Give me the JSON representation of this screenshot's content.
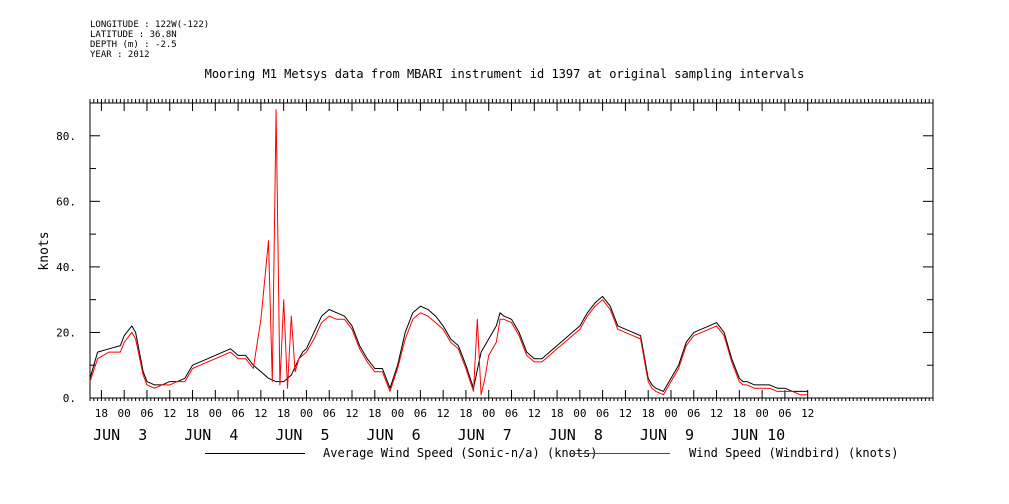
{
  "meta": {
    "longitude": "LONGITUDE : 122W(-122)",
    "latitude": "LATITUDE : 36.8N",
    "depth": "DEPTH (m) : -2.5",
    "year": "YEAR : 2012"
  },
  "chart_data": {
    "type": "line",
    "title": "Mooring M1 Metsys data from MBARI instrument id 1397 at original sampling intervals",
    "ylabel": "knots",
    "xlabel": "",
    "ylim": [
      0,
      90
    ],
    "yticks": [
      0,
      20,
      40,
      60,
      80
    ],
    "ytick_labels": [
      "0.",
      "20.",
      "40.",
      "60.",
      "80."
    ],
    "xlim_hours": [
      -9,
      213
    ],
    "hour_ticks": [
      "18",
      "00",
      "06",
      "12",
      "18",
      "00",
      "06",
      "12",
      "18",
      "00",
      "06",
      "12",
      "18",
      "00",
      "06",
      "12",
      "18",
      "00",
      "06",
      "12",
      "18",
      "00",
      "06",
      "12",
      "18",
      "00",
      "06",
      "12",
      "18",
      "00",
      "06",
      "12"
    ],
    "day_labels": [
      {
        "text": "JUN  3",
        "hour": 0
      },
      {
        "text": "JUN  4",
        "hour": 24
      },
      {
        "text": "JUN  5",
        "hour": 48
      },
      {
        "text": "JUN  6",
        "hour": 72
      },
      {
        "text": "JUN  7",
        "hour": 96
      },
      {
        "text": "JUN  8",
        "hour": 120
      },
      {
        "text": "JUN  9",
        "hour": 144
      },
      {
        "text": "JUN 10",
        "hour": 168
      }
    ],
    "x_units": "hours since JUN 3 00:00",
    "grid": false,
    "legend_position": "bottom",
    "series": [
      {
        "name": "Average Wind Speed (Sonic-n/a) (knots)",
        "color": "#000000",
        "x": [
          -9,
          -7,
          -4,
          -1,
          0,
          2,
          3,
          5,
          6,
          8,
          10,
          12,
          14,
          16,
          18,
          20,
          22,
          24,
          26,
          28,
          30,
          32,
          34,
          36,
          38,
          40,
          42,
          44,
          46,
          47,
          48,
          50,
          52,
          54,
          56,
          58,
          60,
          62,
          64,
          66,
          68,
          70,
          72,
          74,
          76,
          78,
          80,
          82,
          84,
          86,
          88,
          90,
          92,
          94,
          96,
          98,
          99,
          100,
          102,
          104,
          106,
          108,
          110,
          112,
          114,
          116,
          118,
          120,
          122,
          124,
          126,
          128,
          130,
          132,
          134,
          136,
          138,
          139,
          140,
          142,
          144,
          146,
          148,
          150,
          152,
          154,
          156,
          158,
          160,
          162,
          163,
          164,
          166,
          168,
          170,
          172,
          174,
          176,
          178,
          180
        ],
        "y": [
          6,
          14,
          15,
          16,
          19,
          22,
          20,
          8,
          5,
          4,
          4,
          5,
          5,
          6,
          10,
          11,
          12,
          13,
          14,
          15,
          13,
          13,
          10,
          8,
          6,
          5,
          5,
          7,
          12,
          14,
          15,
          20,
          25,
          27,
          26,
          25,
          22,
          16,
          12,
          9,
          9,
          3,
          10,
          20,
          26,
          28,
          27,
          25,
          22,
          18,
          16,
          10,
          3,
          14,
          18,
          22,
          26,
          25,
          24,
          20,
          14,
          12,
          12,
          14,
          16,
          18,
          20,
          22,
          26,
          29,
          31,
          28,
          22,
          21,
          20,
          19,
          6,
          4,
          3,
          2,
          6,
          10,
          17,
          20,
          21,
          22,
          23,
          20,
          12,
          6,
          5,
          5,
          4,
          4,
          4,
          3,
          3,
          2,
          2,
          2
        ]
      },
      {
        "name": "Wind Speed (Windbird) (knots)",
        "color": "#ff0000",
        "x": [
          -9,
          -7,
          -4,
          -1,
          0,
          2,
          3,
          5,
          6,
          8,
          10,
          12,
          14,
          16,
          18,
          20,
          22,
          24,
          26,
          28,
          30,
          32,
          34,
          36,
          38,
          39,
          40,
          41,
          42,
          43,
          44,
          45,
          46,
          47,
          48,
          50,
          52,
          54,
          56,
          58,
          60,
          62,
          64,
          66,
          68,
          70,
          72,
          74,
          76,
          78,
          80,
          82,
          84,
          86,
          88,
          90,
          92,
          93,
          94,
          95,
          96,
          98,
          99,
          100,
          102,
          104,
          106,
          108,
          110,
          112,
          114,
          116,
          118,
          120,
          122,
          124,
          126,
          128,
          130,
          132,
          134,
          136,
          138,
          139,
          140,
          142,
          144,
          146,
          148,
          150,
          152,
          154,
          156,
          158,
          160,
          162,
          163,
          164,
          166,
          168,
          170,
          172,
          174,
          176,
          178,
          180
        ],
        "y": [
          5,
          12,
          14,
          14,
          17,
          20,
          18,
          7,
          4,
          3,
          4,
          4,
          5,
          5,
          9,
          10,
          11,
          12,
          13,
          14,
          12,
          12,
          9,
          24,
          48,
          5,
          88,
          4,
          30,
          3,
          25,
          8,
          12,
          13,
          14,
          18,
          23,
          25,
          24,
          24,
          21,
          15,
          11,
          8,
          8,
          2,
          9,
          18,
          24,
          26,
          25,
          23,
          21,
          17,
          15,
          9,
          2,
          24,
          1,
          6,
          13,
          17,
          24,
          24,
          23,
          19,
          13,
          11,
          11,
          13,
          15,
          17,
          19,
          21,
          25,
          28,
          30,
          27,
          21,
          20,
          19,
          18,
          5,
          3,
          2,
          1,
          5,
          9,
          16,
          19,
          20,
          21,
          22,
          19,
          11,
          5,
          4,
          4,
          3,
          3,
          3,
          2,
          2,
          2,
          1,
          1
        ]
      }
    ]
  }
}
